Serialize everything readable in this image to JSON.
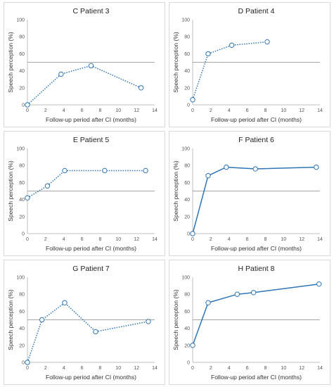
{
  "chart_data": [
    {
      "type": "line",
      "title": "C  Patient 3",
      "xlabel": "Follow-up period after CI (months)",
      "ylabel": "Speech perception (%)",
      "xlim": [
        0,
        14
      ],
      "ylim": [
        0,
        100
      ],
      "xticks": [
        "0",
        "2",
        "4",
        "6",
        "8",
        "10",
        "12",
        "14"
      ],
      "yticks": [
        "0",
        "20",
        "40",
        "60",
        "80",
        "100"
      ],
      "reference_line": 50,
      "x": [
        0,
        3.7,
        7,
        12.5
      ],
      "y": [
        0,
        36,
        46,
        20
      ],
      "color": "#2e75b6",
      "line_style": "dotted",
      "marker": "open-circle",
      "grid": false
    },
    {
      "type": "line",
      "title": "D  Patient 4",
      "xlabel": "Follow-up period after CI (months)",
      "ylabel": "Speech perception (%)",
      "xlim": [
        0,
        14
      ],
      "ylim": [
        0,
        100
      ],
      "xticks": [
        "0",
        "2",
        "4",
        "6",
        "8",
        "10",
        "12",
        "14"
      ],
      "yticks": [
        "0",
        "20",
        "40",
        "60",
        "80",
        "100"
      ],
      "reference_line": 50,
      "x": [
        0,
        1.7,
        4.3,
        8.2
      ],
      "y": [
        6,
        60,
        70,
        74
      ],
      "color": "#2e75b6",
      "line_style": "dotted",
      "marker": "open-circle",
      "grid": false
    },
    {
      "type": "line",
      "title": "E  Patient 5",
      "xlabel": "Follow-up period after CI (months)",
      "ylabel": "Speech perception (%)",
      "xlim": [
        0,
        14
      ],
      "ylim": [
        0,
        100
      ],
      "xticks": [
        "0",
        "2",
        "4",
        "6",
        "8",
        "10",
        "12",
        "14"
      ],
      "yticks": [
        "0",
        "20",
        "40",
        "60",
        "80",
        "100"
      ],
      "reference_line": 50,
      "x": [
        0,
        2.2,
        4.1,
        8.5,
        13
      ],
      "y": [
        42,
        56,
        74,
        74,
        74
      ],
      "color": "#2e75b6",
      "line_style": "dotted",
      "marker": "open-circle",
      "grid": false
    },
    {
      "type": "line",
      "title": "F  Patient 6",
      "xlabel": "Follow-up period after CI (months)",
      "ylabel": "Speech perception (%)",
      "xlim": [
        0,
        14
      ],
      "ylim": [
        0,
        100
      ],
      "xticks": [
        "0",
        "2",
        "4",
        "6",
        "8",
        "10",
        "12",
        "14"
      ],
      "yticks": [
        "0",
        "20",
        "40",
        "60",
        "80",
        "100"
      ],
      "reference_line": 50,
      "x": [
        0,
        1.7,
        3.7,
        6.9,
        13.6
      ],
      "y": [
        0,
        68,
        78,
        76,
        78
      ],
      "color": "#2e75b6",
      "line_style": "solid",
      "marker": "open-circle",
      "grid": false
    },
    {
      "type": "line",
      "title": "G  Patient 7",
      "xlabel": "Follow-up period after CI (months)",
      "ylabel": "Speech perception (%)",
      "xlim": [
        0,
        14
      ],
      "ylim": [
        0,
        100
      ],
      "xticks": [
        "0",
        "2",
        "4",
        "6",
        "8",
        "10",
        "12",
        "14"
      ],
      "yticks": [
        "0",
        "20",
        "40",
        "60",
        "80",
        "100"
      ],
      "reference_line": 50,
      "x": [
        0,
        1.6,
        4.1,
        7.5,
        13.3
      ],
      "y": [
        0,
        50,
        70,
        36,
        48
      ],
      "color": "#2e75b6",
      "line_style": "dotted",
      "marker": "open-circle",
      "grid": false
    },
    {
      "type": "line",
      "title": "H  Patient 8",
      "xlabel": "Follow-up period after CI (months)",
      "ylabel": "Speech perception (%)",
      "xlim": [
        0,
        14
      ],
      "ylim": [
        0,
        100
      ],
      "xticks": [
        "0",
        "2",
        "4",
        "6",
        "8",
        "10",
        "12",
        "14"
      ],
      "yticks": [
        "0",
        "20",
        "40",
        "60",
        "80",
        "100"
      ],
      "reference_line": 50,
      "x": [
        0,
        1.7,
        4.9,
        6.7,
        13.9
      ],
      "y": [
        20,
        70,
        80,
        82,
        92
      ],
      "color": "#2e75b6",
      "line_style": "solid",
      "marker": "open-circle",
      "grid": false
    }
  ]
}
